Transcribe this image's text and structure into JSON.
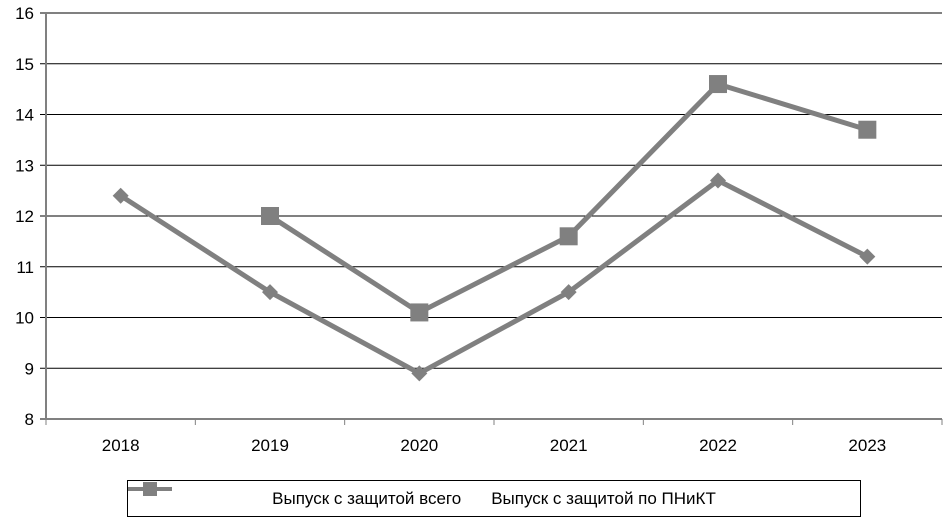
{
  "chart_data": {
    "type": "line",
    "categories": [
      "2018",
      "2019",
      "2020",
      "2021",
      "2022",
      "2023"
    ],
    "series": [
      {
        "name": "Выпуск с защитой всего",
        "marker": "diamond",
        "color": "#808080",
        "values": [
          12.4,
          10.5,
          8.9,
          10.5,
          12.7,
          11.2
        ]
      },
      {
        "name": "Выпуск с защитой по ПНиКТ",
        "marker": "square",
        "color": "#808080",
        "values": [
          null,
          12.0,
          10.1,
          11.6,
          14.6,
          13.7
        ]
      }
    ],
    "ylim": [
      8,
      16
    ],
    "yticks": [
      8,
      9,
      10,
      11,
      12,
      13,
      14,
      15,
      16
    ],
    "grid": "horizontal",
    "legend": "bottom"
  }
}
